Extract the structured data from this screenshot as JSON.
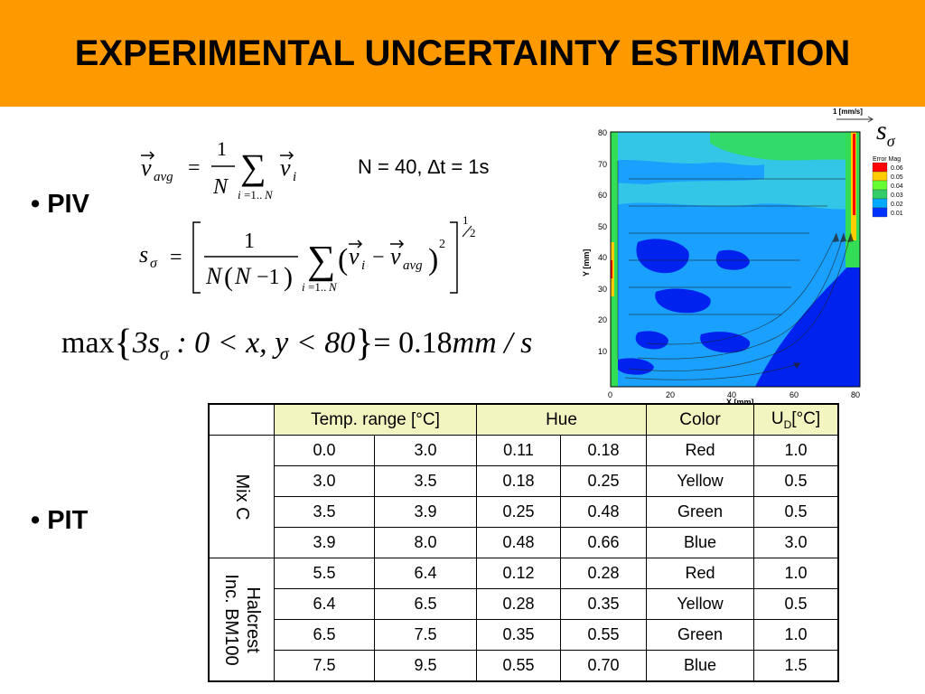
{
  "slide": {
    "title": "EXPERIMENTAL UNCERTAINTY ESTIMATION",
    "bullets": {
      "piv": "• PIV",
      "pit": "• PIT"
    },
    "params": "N = 40, ∆t = 1s",
    "max_eq": {
      "lhs": "max",
      "inner": "3s",
      "sub": "σ",
      "cond": " : 0 < x, y < 80",
      "rhs": "= 0.18",
      "unit": "mm / s"
    }
  },
  "plot": {
    "scale_label": "1 [mm/s]",
    "symbol": "s",
    "symbol_sub": "σ",
    "legend_title": "Error Mag",
    "legend_levels": [
      "0.06",
      "0.05",
      "0.04",
      "0.03",
      "0.02",
      "0.01"
    ],
    "legend_colors": [
      "#ff0000",
      "#ffcc00",
      "#66ff33",
      "#33cc66",
      "#00aaff",
      "#0033ff"
    ],
    "xlabel": "X [mm]",
    "ylabel": "Y [mm]",
    "xticks": [
      "0",
      "20",
      "40",
      "60",
      "80"
    ],
    "yticks": [
      "10",
      "20",
      "30",
      "40",
      "50",
      "60",
      "70",
      "80"
    ],
    "colors": {
      "blue": "#0022ee",
      "light_blue": "#1aa0ff",
      "cyan": "#33c6e6",
      "green": "#33dd55"
    }
  },
  "table": {
    "headers": {
      "temp": "Temp. range [°C]",
      "hue": "Hue",
      "color": "Color",
      "ud": "U",
      "ud_sub": "D",
      "ud_unit": "[°C]"
    },
    "groups": [
      {
        "label": "Mix C",
        "rows": [
          [
            "0.0",
            "3.0",
            "0.11",
            "0.18",
            "Red",
            "1.0"
          ],
          [
            "3.0",
            "3.5",
            "0.18",
            "0.25",
            "Yellow",
            "0.5"
          ],
          [
            "3.5",
            "3.9",
            "0.25",
            "0.48",
            "Green",
            "0.5"
          ],
          [
            "3.9",
            "8.0",
            "0.48",
            "0.66",
            "Blue",
            "3.0"
          ]
        ]
      },
      {
        "label_line1": "Halcrest",
        "label_line2": "Inc. BM100",
        "rows": [
          [
            "5.5",
            "6.4",
            "0.12",
            "0.28",
            "Red",
            "1.0"
          ],
          [
            "6.4",
            "6.5",
            "0.28",
            "0.35",
            "Yellow",
            "0.5"
          ],
          [
            "6.5",
            "7.5",
            "0.35",
            "0.55",
            "Green",
            "1.0"
          ],
          [
            "7.5",
            "9.5",
            "0.55",
            "0.70",
            "Blue",
            "1.5"
          ]
        ]
      }
    ]
  }
}
